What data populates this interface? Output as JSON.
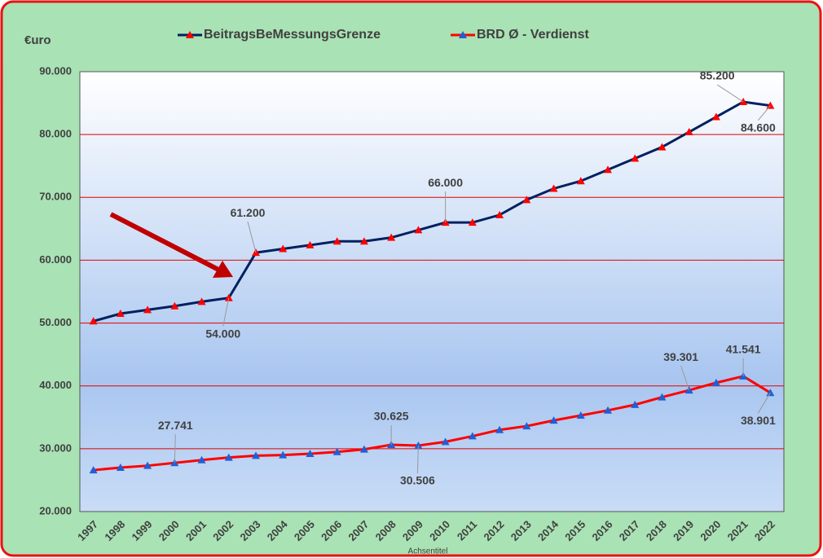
{
  "chart_data": {
    "type": "line",
    "y_unit_label": "€uro",
    "x_axis_label": "Achsentitel",
    "categories": [
      "1997",
      "1998",
      "1999",
      "2000",
      "2001",
      "2002",
      "2003",
      "2004",
      "2005",
      "2006",
      "2007",
      "2008",
      "2009",
      "2010",
      "2011",
      "2012",
      "2013",
      "2014",
      "2015",
      "2016",
      "2017",
      "2018",
      "2019",
      "2020",
      "2021",
      "2022"
    ],
    "series": [
      {
        "name": "BeitragsBeMessungsGrenze",
        "color": "#002060",
        "marker_color": "#ff0000",
        "values": [
          50300,
          51500,
          52100,
          52700,
          53400,
          54000,
          61200,
          61800,
          62400,
          63000,
          63000,
          63600,
          64800,
          66000,
          66000,
          67200,
          69600,
          71400,
          72600,
          74400,
          76200,
          78000,
          80400,
          82800,
          85200,
          84600
        ],
        "value_labels": [
          null,
          null,
          null,
          null,
          null,
          "54.000",
          "61.200",
          null,
          null,
          null,
          null,
          null,
          null,
          "66.000",
          null,
          null,
          null,
          null,
          null,
          null,
          null,
          null,
          null,
          null,
          "85.200",
          "84.600"
        ]
      },
      {
        "name": "BRD Ø - Verdienst",
        "color": "#ff0000",
        "marker_color": "#1f5fd6",
        "values": [
          26600,
          27000,
          27300,
          27741,
          28200,
          28600,
          28900,
          29000,
          29200,
          29500,
          29900,
          30625,
          30506,
          31100,
          32000,
          33000,
          33600,
          34500,
          35300,
          36100,
          37000,
          38200,
          39301,
          40500,
          41541,
          38901
        ],
        "value_labels": [
          null,
          null,
          null,
          "27.741",
          null,
          null,
          null,
          null,
          null,
          null,
          null,
          "30.625",
          "30.506",
          null,
          null,
          null,
          null,
          null,
          null,
          null,
          null,
          null,
          "39.301",
          null,
          "41.541",
          "38.901"
        ]
      }
    ],
    "ylim": [
      20000,
      90000
    ],
    "yticks": [
      {
        "value": 20000,
        "label": "20.000"
      },
      {
        "value": 30000,
        "label": "30.000"
      },
      {
        "value": 40000,
        "label": "40.000"
      },
      {
        "value": 50000,
        "label": "50.000"
      },
      {
        "value": 60000,
        "label": "60.000"
      },
      {
        "value": 70000,
        "label": "70.000"
      },
      {
        "value": 80000,
        "label": "80.000"
      },
      {
        "value": 90000,
        "label": "90.000"
      }
    ],
    "grid": true,
    "legend": "top"
  }
}
